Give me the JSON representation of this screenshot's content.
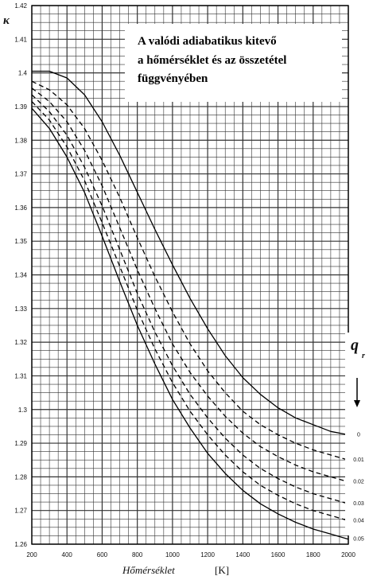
{
  "chart_data": {
    "type": "line",
    "title_lines": [
      "A valódi adiabatikus kitevő",
      "a hőmérséklet és az összetétel",
      "függvényében"
    ],
    "ylabel": "κ",
    "xlabel": "Hőmérséklet",
    "xunit": "[K]",
    "xlim": [
      200,
      2000
    ],
    "ylim": [
      1.26,
      1.42
    ],
    "x_ticks": [
      200,
      400,
      600,
      800,
      1000,
      1200,
      1400,
      1600,
      1800,
      2000
    ],
    "y_ticks": [
      "1.26",
      "1.27",
      "1.28",
      "1.29",
      "1.3",
      "1.31",
      "1.32",
      "1.33",
      "1.34",
      "1.35",
      "1.36",
      "1.37",
      "1.38",
      "1.39",
      "1.4",
      "1.41",
      "1.42"
    ],
    "grid": true,
    "parameter_label": "q",
    "parameter_subscript": "r",
    "parameter_values": [
      "0",
      "0.01",
      "0.02",
      "0.03",
      "0.04",
      "0.05"
    ],
    "x": [
      200,
      300,
      400,
      500,
      600,
      700,
      800,
      900,
      1000,
      1100,
      1200,
      1300,
      1400,
      1500,
      1600,
      1700,
      1800,
      1900,
      2000
    ],
    "series": [
      {
        "values": [
          1.4005,
          1.4005,
          1.3985,
          1.3935,
          1.3855,
          1.3755,
          1.3645,
          1.3535,
          1.343,
          1.333,
          1.324,
          1.316,
          1.3095,
          1.3045,
          1.3005,
          1.2975,
          1.2955,
          1.2935,
          1.2925
        ]
      },
      {
        "values": [
          1.3975,
          1.395,
          1.3905,
          1.3835,
          1.374,
          1.363,
          1.351,
          1.3395,
          1.329,
          1.3195,
          1.3115,
          1.305,
          1.2995,
          1.2955,
          1.2925,
          1.29,
          1.288,
          1.2865,
          1.285
        ]
      },
      {
        "values": [
          1.3955,
          1.3915,
          1.3855,
          1.377,
          1.3665,
          1.354,
          1.3415,
          1.33,
          1.3195,
          1.311,
          1.304,
          1.298,
          1.293,
          1.289,
          1.286,
          1.2835,
          1.2815,
          1.28,
          1.2785
        ]
      },
      {
        "values": [
          1.3935,
          1.3885,
          1.3815,
          1.372,
          1.3605,
          1.3475,
          1.3345,
          1.323,
          1.313,
          1.3045,
          1.2975,
          1.2915,
          1.2865,
          1.2825,
          1.2795,
          1.277,
          1.275,
          1.2735,
          1.272
        ]
      },
      {
        "values": [
          1.3915,
          1.386,
          1.378,
          1.368,
          1.3555,
          1.3425,
          1.3295,
          1.318,
          1.308,
          1.2995,
          1.2925,
          1.2865,
          1.2815,
          1.2775,
          1.2745,
          1.272,
          1.27,
          1.2685,
          1.267
        ]
      },
      {
        "values": [
          1.3895,
          1.3835,
          1.375,
          1.3645,
          1.3515,
          1.338,
          1.325,
          1.3135,
          1.303,
          1.2945,
          1.287,
          1.281,
          1.276,
          1.272,
          1.269,
          1.2665,
          1.2645,
          1.263,
          1.2615
        ]
      }
    ]
  }
}
